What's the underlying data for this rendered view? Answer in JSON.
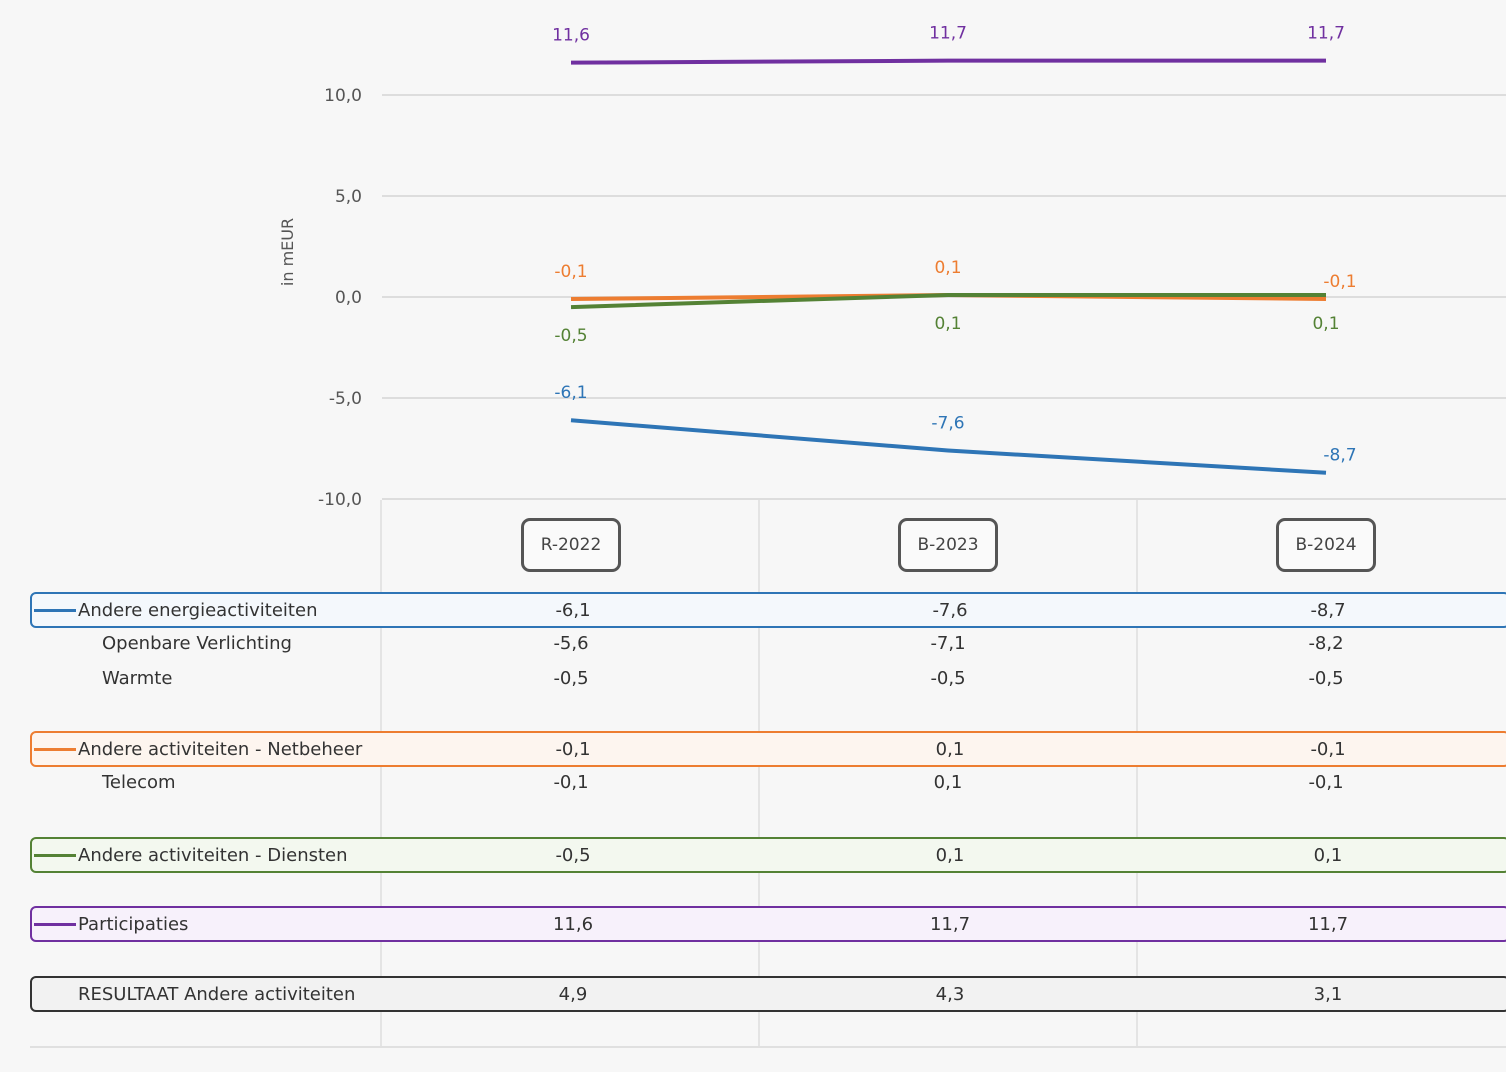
{
  "chart_data": {
    "type": "line",
    "categories": [
      "R-2022",
      "B-2023",
      "B-2024"
    ],
    "ylabel": "in mEUR",
    "ylim": [
      -10,
      10
    ],
    "yticks": [
      "10,0",
      "5,0",
      "0,0",
      "-5,0",
      "-10,0"
    ],
    "ytick_values": [
      10,
      5,
      0,
      -5,
      -10
    ],
    "grid": true,
    "series": [
      {
        "name": "Andere energieactiviteiten",
        "color": "#2e75b6",
        "values": [
          -6.1,
          -7.6,
          -8.7
        ],
        "labels": [
          "-6,1",
          "-7,6",
          "-8,7"
        ],
        "label_pos": "above"
      },
      {
        "name": "Andere activiteiten - Netbeheer",
        "color": "#ed7d31",
        "values": [
          -0.1,
          0.1,
          -0.1
        ],
        "labels": [
          "-0,1",
          "0,1",
          "-0,1"
        ],
        "label_pos": "above"
      },
      {
        "name": "Andere activiteiten - Diensten",
        "color": "#548235",
        "values": [
          -0.5,
          0.1,
          0.1
        ],
        "labels": [
          "-0,5",
          "0,1",
          "0,1"
        ],
        "label_pos": "below"
      },
      {
        "name": "Participaties",
        "color": "#7030a0",
        "values": [
          11.6,
          11.7,
          11.7
        ],
        "labels": [
          "11,6",
          "11,7",
          "11,7"
        ],
        "label_pos": "above"
      }
    ]
  },
  "table": {
    "columns": [
      "R-2022",
      "B-2023",
      "B-2024"
    ],
    "rows": [
      {
        "label": "Andere energieactiviteiten",
        "values": [
          "-6,1",
          "-7,6",
          "-8,7"
        ],
        "color": "#2e75b6",
        "bg": "#f4f8fc",
        "main": true
      },
      {
        "label": "Openbare Verlichting",
        "values": [
          "-5,6",
          "-7,1",
          "-8,2"
        ],
        "main": false
      },
      {
        "label": "Warmte",
        "values": [
          "-0,5",
          "-0,5",
          "-0,5"
        ],
        "main": false
      },
      {
        "label": "Andere activiteiten - Netbeheer",
        "values": [
          "-0,1",
          "0,1",
          "-0,1"
        ],
        "color": "#ed7d31",
        "bg": "#fdf5ef",
        "main": true
      },
      {
        "label": "Telecom",
        "values": [
          "-0,1",
          "0,1",
          "-0,1"
        ],
        "main": false
      },
      {
        "label": "Andere activiteiten - Diensten",
        "values": [
          "-0,5",
          "0,1",
          "0,1"
        ],
        "color": "#548235",
        "bg": "#f3f8ef",
        "main": true
      },
      {
        "label": "Participaties",
        "values": [
          "11,6",
          "11,7",
          "11,7"
        ],
        "color": "#7030a0",
        "bg": "#f7f1fb",
        "main": true
      },
      {
        "label": "RESULTAAT Andere activiteiten",
        "values": [
          "4,9",
          "4,3",
          "3,1"
        ],
        "color": "#333333",
        "bg": "#f2f2f2",
        "main": true,
        "total": true
      }
    ]
  }
}
